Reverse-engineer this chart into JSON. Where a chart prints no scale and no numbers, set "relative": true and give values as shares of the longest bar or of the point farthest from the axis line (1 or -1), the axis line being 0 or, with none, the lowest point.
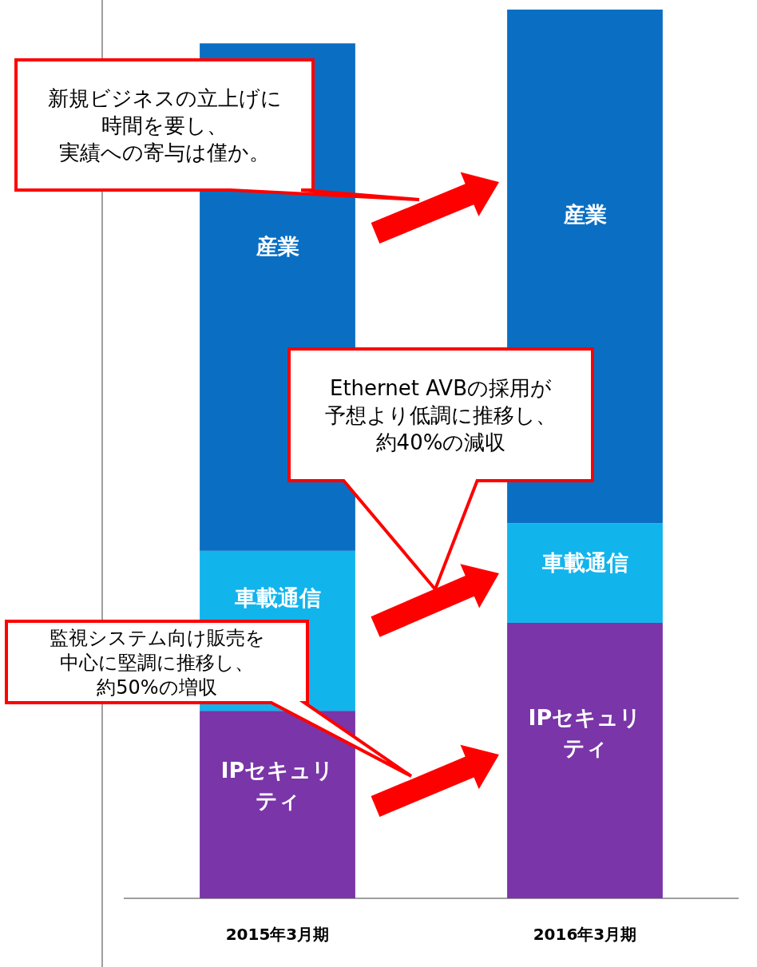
{
  "chart_data": {
    "type": "bar",
    "stacked": true,
    "relative": true,
    "legend": false,
    "categories": [
      "2015年3月期",
      "2016年3月期"
    ],
    "series": [
      {
        "name": "IPセキュリティ",
        "color": "#7a35a8",
        "values": [
          0.211,
          0.31
        ]
      },
      {
        "name": "車載通信",
        "color": "#12b4ec",
        "values": [
          0.18,
          0.112
        ]
      },
      {
        "name": "産業",
        "color": "#0a6fc3",
        "values": [
          0.571,
          0.578
        ]
      }
    ],
    "annotations": [
      "新規ビジネスの立上げに時間を要し、実績への寄与は僅か。",
      "Ethernet AVBの採用が予想より低調に推移し、約40%の減収",
      "監視システム向け販売を中心に堅調に推移し、約50%の増収"
    ]
  }
}
